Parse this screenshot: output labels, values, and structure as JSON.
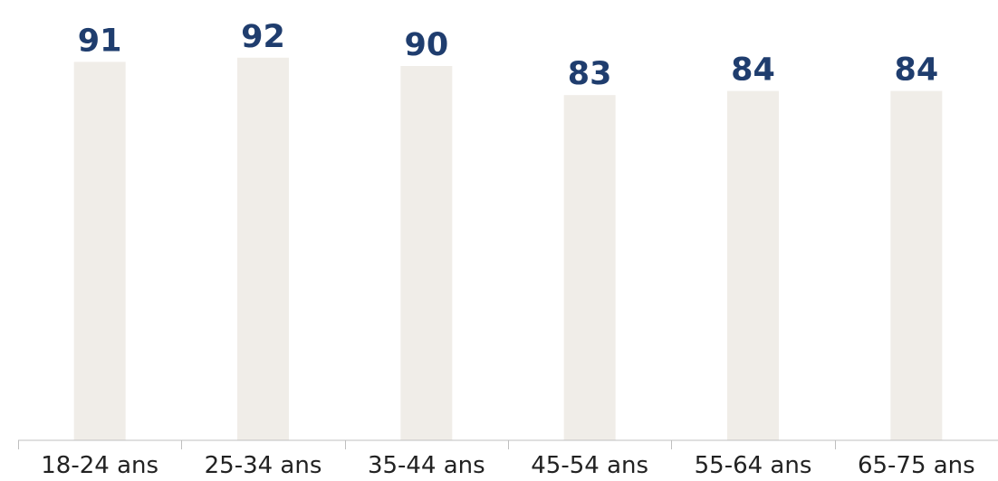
{
  "chart_data": {
    "type": "bar",
    "categories": [
      "18-24 ans",
      "25-34 ans",
      "35-44 ans",
      "45-54 ans",
      "55-64 ans",
      "65-75 ans"
    ],
    "values": [
      91,
      92,
      90,
      83,
      84,
      84
    ],
    "data_labels": [
      "91",
      "92",
      "90",
      "83",
      "84",
      "84"
    ],
    "title": "",
    "xlabel": "",
    "ylabel": "",
    "ylim": [
      0,
      100
    ],
    "grid": false,
    "legend": "none",
    "colors": {
      "bar": "#f0ede8",
      "label": "#1f3d6e",
      "axis": "#bfbfbf",
      "tick_text": "#222222"
    }
  }
}
